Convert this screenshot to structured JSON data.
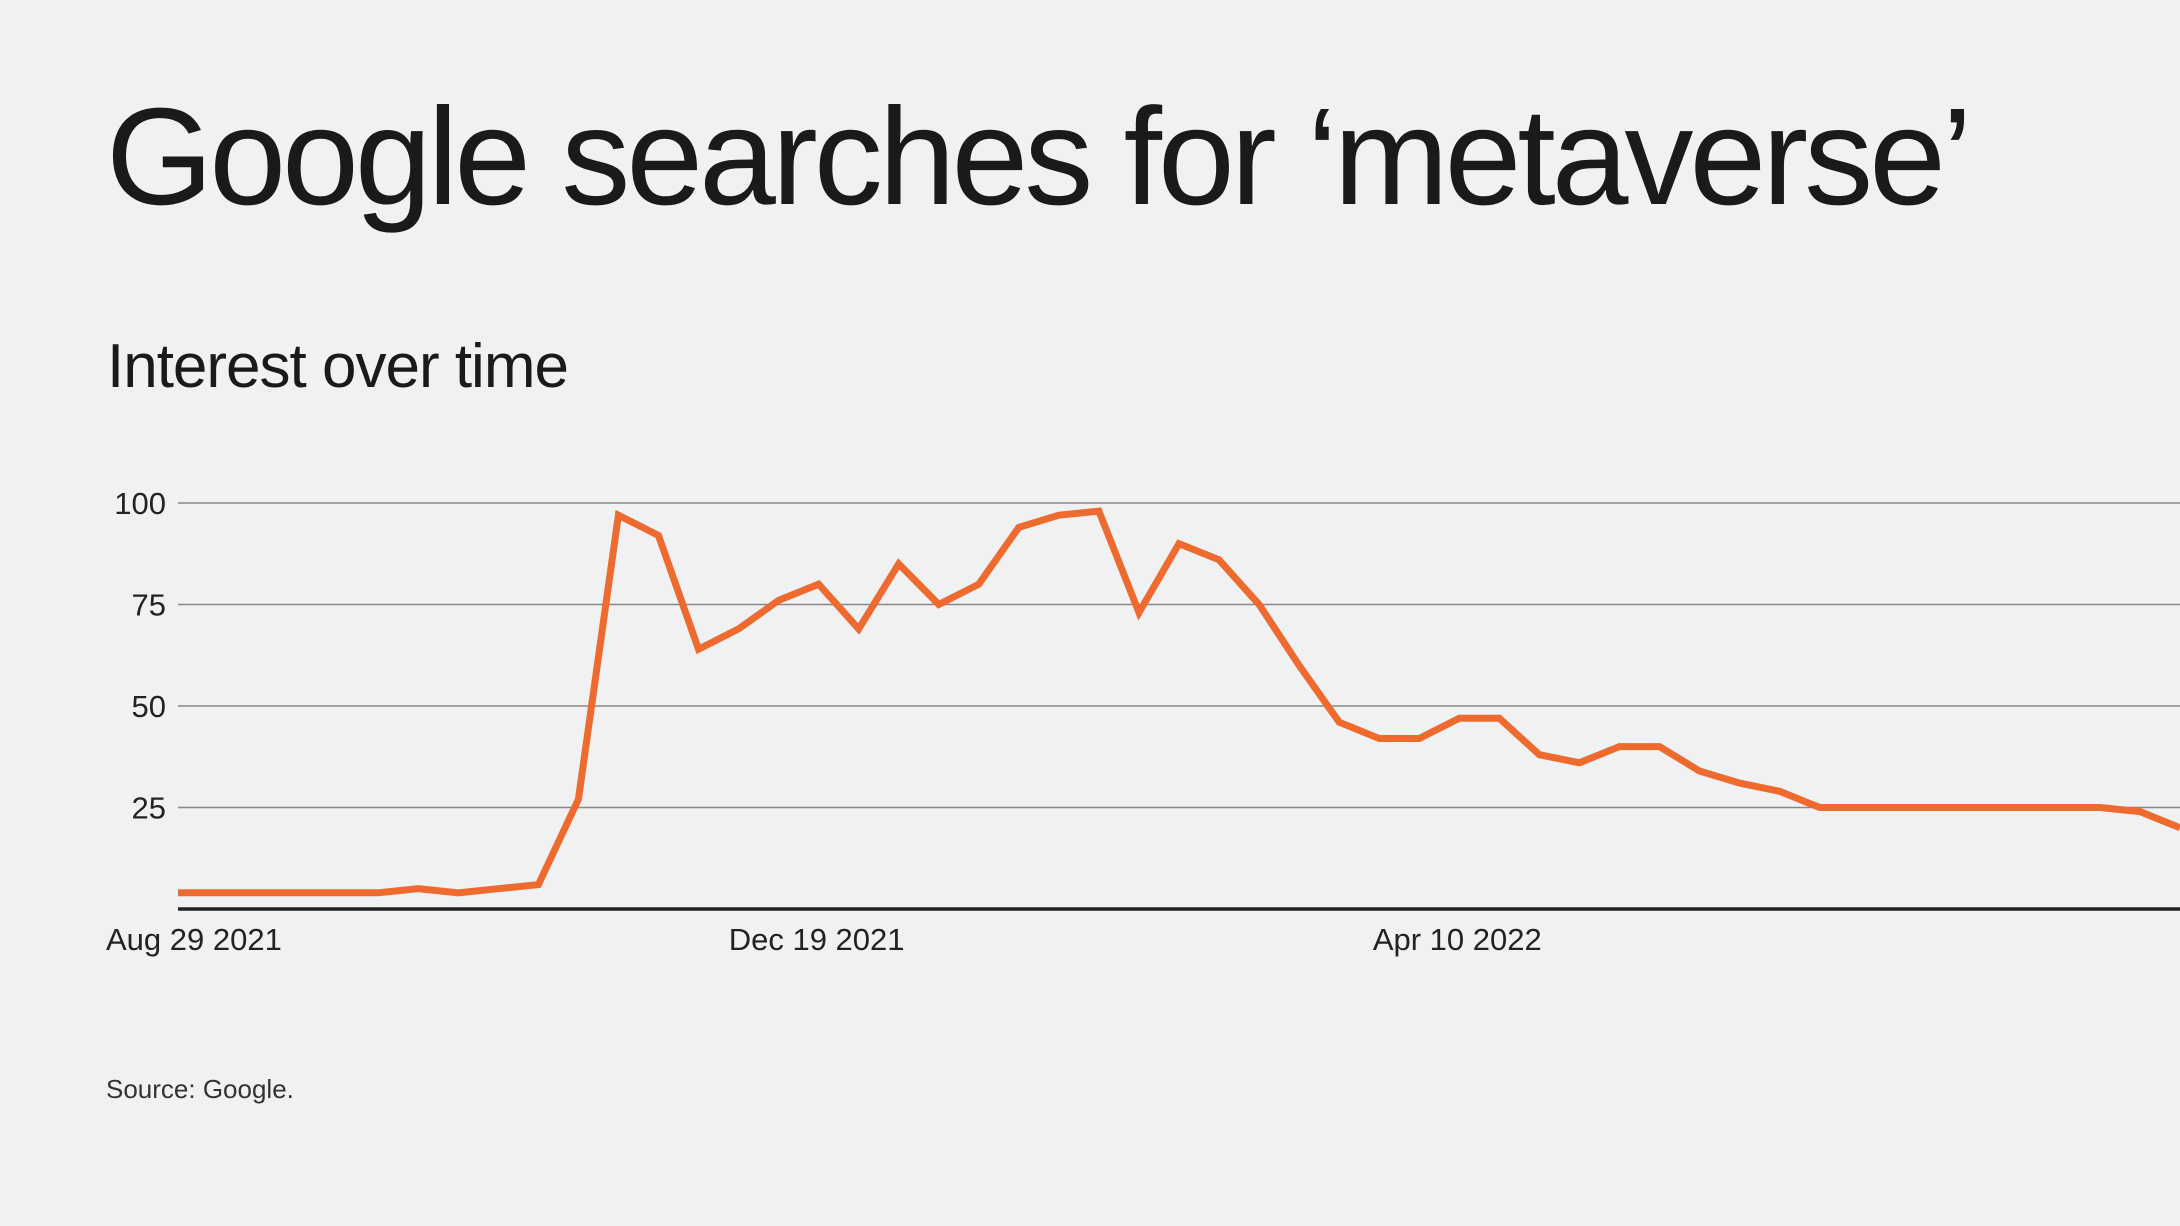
{
  "title": "Google searches for ‘metaverse’",
  "subtitle": "Interest over time",
  "source": "Source: Google.",
  "colors": {
    "line": "#ee6a2f",
    "grid": "#888888",
    "axis": "#222222",
    "background": "#f0f1f3"
  },
  "chart_data": {
    "type": "line",
    "title": "Google searches for ‘metaverse’",
    "subtitle": "Interest over time",
    "xlabel": "",
    "ylabel": "",
    "ylim": [
      0,
      100
    ],
    "yticks": [
      25,
      50,
      75,
      100
    ],
    "xticks": [
      {
        "label": "Aug 29 2021",
        "week": 0
      },
      {
        "label": "Dec 19 2021",
        "week": 16
      },
      {
        "label": "Apr 10 2022",
        "week": 32
      }
    ],
    "grid": true,
    "legend": "none",
    "series": [
      {
        "values": [
          4,
          4,
          4,
          4,
          4,
          4,
          5,
          4,
          5,
          6,
          27,
          97,
          92,
          64,
          69,
          76,
          80,
          69,
          85,
          75,
          80,
          94,
          97,
          98,
          73,
          90,
          86,
          75,
          60,
          46,
          42,
          42,
          47,
          47,
          38,
          36,
          40,
          40,
          34,
          31,
          29,
          25,
          25,
          25,
          25,
          25,
          25,
          25,
          25,
          24,
          20
        ]
      }
    ]
  }
}
